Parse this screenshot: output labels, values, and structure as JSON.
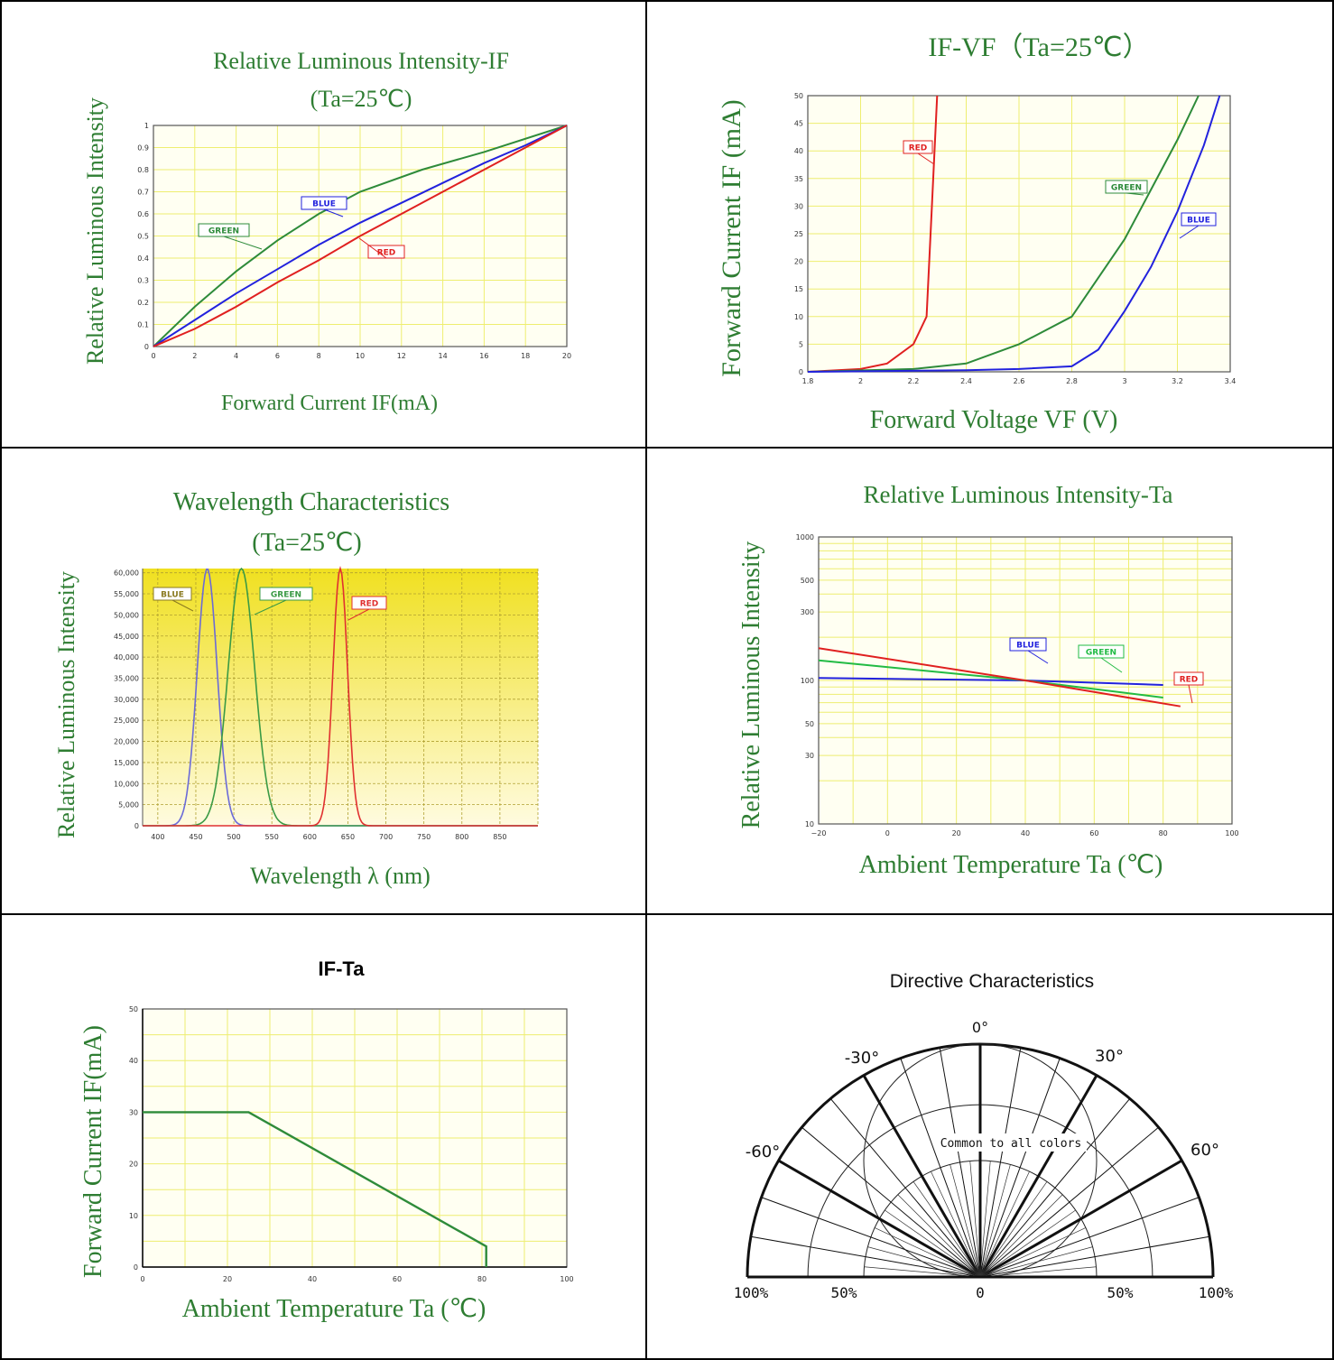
{
  "chart_data": [
    {
      "id": "c1",
      "type": "line",
      "title": "Relative Luminous Intensity-IF",
      "subtitle": "(Ta=25℃)",
      "xlabel": "Forward Current IF(mA)",
      "ylabel": "Relative Luminous Intensity",
      "xlim": [
        0,
        20
      ],
      "ylim": [
        0,
        1
      ],
      "xticks": [
        0,
        2,
        4,
        6,
        8,
        10,
        12,
        14,
        16,
        18,
        20
      ],
      "yticks": [
        0,
        0.1,
        0.2,
        0.3,
        0.4,
        0.5,
        0.6,
        0.7,
        0.8,
        0.9,
        1
      ],
      "grid": true,
      "series": [
        {
          "name": "GREEN",
          "color": "#2e8b3a",
          "x": [
            0,
            2,
            4,
            6,
            8,
            10,
            13,
            16,
            20
          ],
          "y": [
            0,
            0.18,
            0.34,
            0.48,
            0.6,
            0.7,
            0.8,
            0.88,
            1.0
          ]
        },
        {
          "name": "BLUE",
          "color": "#2222dd",
          "x": [
            0,
            2,
            4,
            6,
            8,
            10,
            12,
            14,
            16,
            18,
            20
          ],
          "y": [
            0,
            0.12,
            0.24,
            0.35,
            0.46,
            0.56,
            0.65,
            0.74,
            0.83,
            0.91,
            1.0
          ]
        },
        {
          "name": "RED",
          "color": "#e02020",
          "x": [
            0,
            2,
            4,
            6,
            8,
            10,
            12,
            14,
            16,
            18,
            20
          ],
          "y": [
            0,
            0.08,
            0.18,
            0.29,
            0.39,
            0.5,
            0.6,
            0.7,
            0.8,
            0.9,
            1.0
          ]
        }
      ]
    },
    {
      "id": "c2",
      "type": "line",
      "title": "IF-VF（Ta=25℃）",
      "xlabel": "Forward Voltage VF (V)",
      "ylabel": "Forward Current IF (mA)",
      "xlim": [
        1.8,
        3.4
      ],
      "ylim": [
        0,
        50
      ],
      "xticks": [
        1.8,
        2,
        2.2,
        2.4,
        2.6,
        2.8,
        3,
        3.2,
        3.4
      ],
      "yticks": [
        0,
        5,
        10,
        15,
        20,
        25,
        30,
        35,
        40,
        45,
        50
      ],
      "grid": true,
      "series": [
        {
          "name": "RED",
          "color": "#e02020",
          "x": [
            1.8,
            2.0,
            2.1,
            2.2,
            2.25,
            2.27,
            2.29
          ],
          "y": [
            0,
            0.5,
            1.5,
            5,
            10,
            30,
            50
          ]
        },
        {
          "name": "GREEN",
          "color": "#2e8b3a",
          "x": [
            1.8,
            2.2,
            2.4,
            2.6,
            2.8,
            3.0,
            3.1,
            3.2,
            3.28
          ],
          "y": [
            0,
            0.5,
            1.5,
            5,
            10,
            24,
            33,
            42,
            50
          ]
        },
        {
          "name": "BLUE",
          "color": "#2222dd",
          "x": [
            1.8,
            2.4,
            2.6,
            2.8,
            2.9,
            3.0,
            3.1,
            3.2,
            3.3,
            3.36
          ],
          "y": [
            0,
            0.3,
            0.5,
            1,
            4,
            11,
            19,
            29,
            41,
            50
          ]
        }
      ]
    },
    {
      "id": "c3",
      "type": "line",
      "title": "Wavelength Characteristics",
      "subtitle": "(Ta=25℃)",
      "xlabel": "Wavelength λ (nm)",
      "ylabel": "Relative Luminous Intensity",
      "xlim": [
        380,
        900
      ],
      "ylim": [
        0,
        61000
      ],
      "xticks": [
        400,
        450,
        500,
        550,
        600,
        650,
        700,
        750,
        800,
        850
      ],
      "yticks": [
        0,
        5000,
        10000,
        15000,
        20000,
        25000,
        30000,
        35000,
        40000,
        45000,
        50000,
        55000,
        60000
      ],
      "yticklabels": [
        "0",
        "5,000",
        "10,000",
        "15,000",
        "20,000",
        "25,000",
        "30,000",
        "35,000",
        "40,000",
        "45,000",
        "50,000",
        "55,000",
        "60,000"
      ],
      "grid": true,
      "series": [
        {
          "name": "BLUE",
          "color": "#6a6ad8",
          "peak": 465,
          "width": 30
        },
        {
          "name": "GREEN",
          "color": "#3a9a45",
          "peak": 510,
          "width": 40
        },
        {
          "name": "RED",
          "color": "#e03030",
          "peak": 640,
          "width": 22
        }
      ]
    },
    {
      "id": "c4",
      "type": "line",
      "title": "Relative Luminous Intensity-Ta",
      "xlabel": "Ambient Temperature Ta (℃)",
      "ylabel": "Relative Luminous Intensity",
      "xscale": "linear",
      "yscale": "log",
      "xlim": [
        -20,
        100
      ],
      "ylim": [
        10,
        1000
      ],
      "xticks": [
        -20,
        0,
        20,
        40,
        60,
        80,
        100
      ],
      "yticks": [
        10,
        30,
        50,
        100,
        300,
        500,
        1000
      ],
      "grid": true,
      "series": [
        {
          "name": "BLUE",
          "color": "#2222dd",
          "x": [
            -20,
            40,
            80
          ],
          "y": [
            104,
            100,
            93
          ]
        },
        {
          "name": "GREEN",
          "color": "#22bb44",
          "x": [
            -20,
            40,
            80
          ],
          "y": [
            138,
            100,
            76
          ]
        },
        {
          "name": "RED",
          "color": "#e02020",
          "x": [
            -20,
            40,
            85
          ],
          "y": [
            168,
            100,
            66
          ]
        }
      ]
    },
    {
      "id": "c5",
      "type": "line",
      "title": "IF-Ta",
      "xlabel": "Ambient Temperature Ta (℃)",
      "ylabel": "Forward Current IF(mA)",
      "xlim": [
        0,
        100
      ],
      "ylim": [
        0,
        50
      ],
      "xticks": [
        0,
        20,
        40,
        60,
        80,
        100
      ],
      "yticks": [
        0,
        10,
        20,
        30,
        40,
        50
      ],
      "grid": true,
      "series": [
        {
          "color": "#2e8b3a",
          "x": [
            0,
            25,
            81,
            81
          ],
          "y": [
            30,
            30,
            4,
            0
          ]
        }
      ]
    },
    {
      "id": "c6",
      "type": "polar",
      "title": "Directive Characteristics",
      "annotation": "Common to all colors",
      "angle_labels": [
        "0°",
        "-30°",
        "30°",
        "-60°",
        "60°"
      ],
      "radial_labels": [
        "100%",
        "50%",
        "0",
        "50%",
        "100%"
      ]
    }
  ]
}
